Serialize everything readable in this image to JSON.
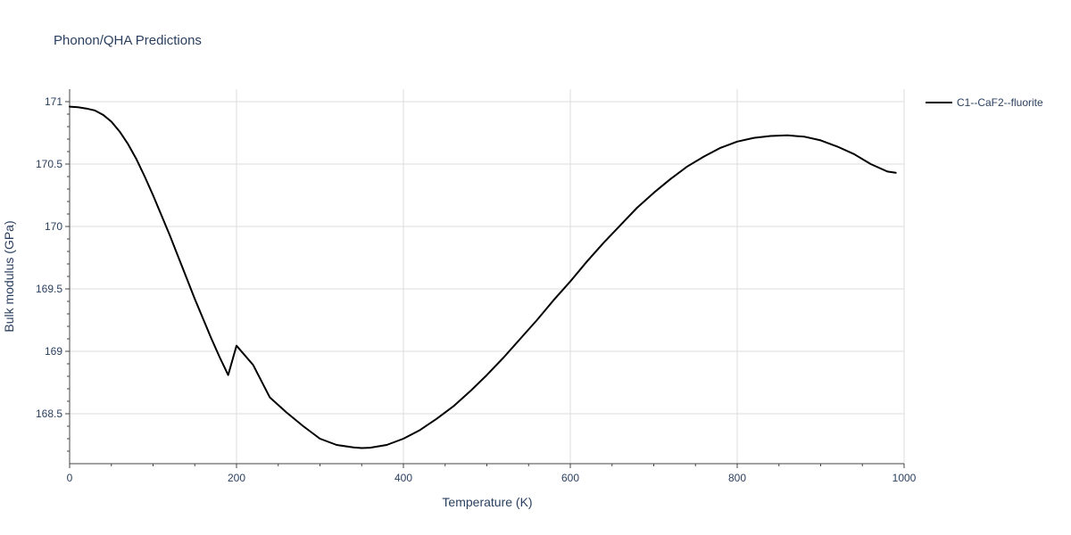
{
  "chart_data": {
    "type": "line",
    "title": "Phonon/QHA Predictions",
    "xlabel": "Temperature (K)",
    "ylabel": "Bulk modulus (GPa)",
    "xlim": [
      0,
      1000
    ],
    "ylim": [
      168.1,
      171.1
    ],
    "x_ticks": [
      0,
      200,
      400,
      600,
      800,
      1000
    ],
    "x_tick_labels": [
      "0",
      "200",
      "400",
      "600",
      "800",
      "1000"
    ],
    "y_ticks": [
      168.5,
      169,
      169.5,
      170,
      170.5,
      171
    ],
    "y_tick_labels": [
      "168.5",
      "169",
      "169.5",
      "170",
      "170.5",
      "171"
    ],
    "grid": true,
    "legend_position": "top-right",
    "series": [
      {
        "name": "C1--CaF2--fluorite",
        "color": "#000000",
        "x": [
          0,
          10,
          20,
          30,
          40,
          50,
          60,
          70,
          80,
          90,
          100,
          110,
          120,
          130,
          140,
          150,
          160,
          170,
          180,
          190,
          200,
          220,
          240,
          260,
          280,
          300,
          320,
          340,
          350,
          360,
          380,
          400,
          420,
          440,
          460,
          480,
          500,
          520,
          540,
          560,
          580,
          600,
          620,
          640,
          660,
          680,
          700,
          720,
          740,
          760,
          780,
          800,
          820,
          840,
          860,
          880,
          900,
          920,
          940,
          960,
          980,
          990
        ],
        "y": [
          170.96,
          170.955,
          170.945,
          170.93,
          170.895,
          170.84,
          170.76,
          170.66,
          170.54,
          170.4,
          170.25,
          170.09,
          169.93,
          169.76,
          169.59,
          169.42,
          169.26,
          169.1,
          168.95,
          168.81,
          169.045,
          168.89,
          168.63,
          168.51,
          168.4,
          168.3,
          168.25,
          168.23,
          168.225,
          168.228,
          168.25,
          168.3,
          168.37,
          168.46,
          168.56,
          168.68,
          168.81,
          168.95,
          169.1,
          169.25,
          169.41,
          169.56,
          169.72,
          169.87,
          170.01,
          170.15,
          170.27,
          170.38,
          170.48,
          170.56,
          170.63,
          170.68,
          170.71,
          170.725,
          170.73,
          170.72,
          170.69,
          170.64,
          170.58,
          170.5,
          170.44,
          170.43
        ]
      }
    ]
  }
}
